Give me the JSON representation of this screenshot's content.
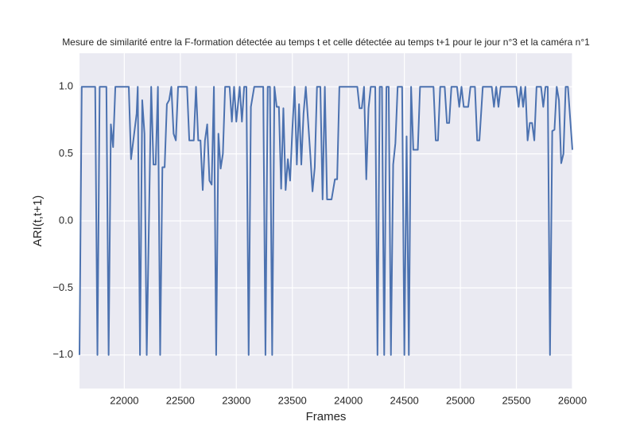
{
  "chart_data": {
    "type": "line",
    "title": "Mesure de similarité entre la F-formation détectée au temps t et celle détectée au temps t+1 pour le jour n°3 et la caméra n°1",
    "x_label": "Frames",
    "y_label": "ARI(t,t+1)",
    "xlim": [
      21600,
      26000
    ],
    "ylim": [
      -1.25,
      1.25
    ],
    "xticks": [
      22000,
      22500,
      23000,
      23500,
      24000,
      24500,
      25000,
      25500,
      26000
    ],
    "yticks": [
      {
        "value": -1.0,
        "label": "−1.0"
      },
      {
        "value": -0.5,
        "label": "−0.5"
      },
      {
        "value": 0.0,
        "label": "0.0"
      },
      {
        "value": 0.5,
        "label": "0.5"
      },
      {
        "value": 1.0,
        "label": "1.0"
      }
    ],
    "grid": true,
    "series": [
      {
        "color": "#4c72b0",
        "x": [
          21600,
          21620,
          21740,
          21760,
          21780,
          21840,
          21860,
          21880,
          21900,
          21920,
          22040,
          22060,
          22110,
          22120,
          22140,
          22160,
          22180,
          22200,
          22240,
          22260,
          22280,
          22300,
          22320,
          22340,
          22360,
          22380,
          22400,
          22420,
          22440,
          22460,
          22480,
          22560,
          22580,
          22620,
          22640,
          22660,
          22680,
          22700,
          22720,
          22740,
          22760,
          22780,
          22800,
          22820,
          22840,
          22860,
          22880,
          22900,
          22940,
          22960,
          22980,
          23000,
          23030,
          23050,
          23070,
          23090,
          23110,
          23130,
          23160,
          23240,
          23260,
          23280,
          23300,
          23320,
          23340,
          23360,
          23380,
          23400,
          23420,
          23440,
          23460,
          23480,
          23500,
          23520,
          23540,
          23560,
          23580,
          23600,
          23620,
          23660,
          23680,
          23700,
          23720,
          23750,
          23770,
          23790,
          23810,
          23850,
          23880,
          23900,
          23920,
          24080,
          24100,
          24120,
          24140,
          24160,
          24180,
          24200,
          24240,
          24260,
          24280,
          24300,
          24320,
          24340,
          24360,
          24380,
          24400,
          24420,
          24440,
          24480,
          24500,
          24520,
          24540,
          24560,
          24580,
          24620,
          24640,
          24760,
          24780,
          24800,
          24820,
          24860,
          24880,
          24900,
          24920,
          24970,
          24990,
          25010,
          25030,
          25070,
          25090,
          25130,
          25150,
          25170,
          25200,
          25280,
          25300,
          25320,
          25340,
          25360,
          25500,
          25520,
          25540,
          25560,
          25580,
          25600,
          25620,
          25640,
          25660,
          25680,
          25720,
          25740,
          25760,
          25780,
          25800,
          25820,
          25840,
          25860,
          25880,
          25900,
          25920,
          25940,
          25960,
          26000
        ],
        "values": [
          -1,
          1,
          1,
          -1,
          1,
          1,
          -1,
          0.72,
          0.55,
          1,
          1,
          0.46,
          0.8,
          1,
          -1,
          0.9,
          0.65,
          -1,
          1,
          0.42,
          0.42,
          1,
          -1,
          0.4,
          0.4,
          0.87,
          0.9,
          1,
          0.65,
          0.6,
          1,
          1,
          0.6,
          0.6,
          1,
          0.6,
          0.6,
          0.23,
          0.6,
          0.72,
          0.3,
          0.27,
          1,
          -1,
          0.65,
          0.39,
          0.5,
          1,
          1,
          0.74,
          1,
          0.74,
          1,
          0.74,
          1,
          1,
          -1,
          0.85,
          1,
          1,
          -1,
          1,
          1,
          -1,
          1,
          0.85,
          0.85,
          0.24,
          0.84,
          0.23,
          0.46,
          0.3,
          0.68,
          1,
          0.42,
          0.87,
          0.42,
          0.8,
          1,
          0.5,
          0.22,
          0.4,
          1,
          1,
          0.16,
          1,
          0.16,
          0.16,
          0.31,
          0.31,
          1,
          1,
          0.84,
          0.84,
          1,
          0.31,
          0.84,
          1,
          1,
          -1,
          1,
          1,
          -1,
          1,
          1,
          -1,
          0.42,
          0.58,
          1,
          1,
          -1,
          0.63,
          -1,
          1,
          0.53,
          0.53,
          1,
          1,
          0.6,
          0.6,
          1,
          1,
          0.73,
          0.73,
          1,
          1,
          0.85,
          1,
          0.85,
          0.85,
          1,
          1,
          0.6,
          0.6,
          1,
          1,
          0.85,
          1,
          0.85,
          1,
          1,
          0.85,
          1,
          0.85,
          1,
          0.6,
          0.73,
          0.73,
          0.6,
          1,
          1,
          0.85,
          1,
          1,
          -1,
          0.67,
          0.68,
          1,
          0.9,
          0.43,
          0.5,
          1,
          1,
          0.53
        ]
      }
    ]
  }
}
